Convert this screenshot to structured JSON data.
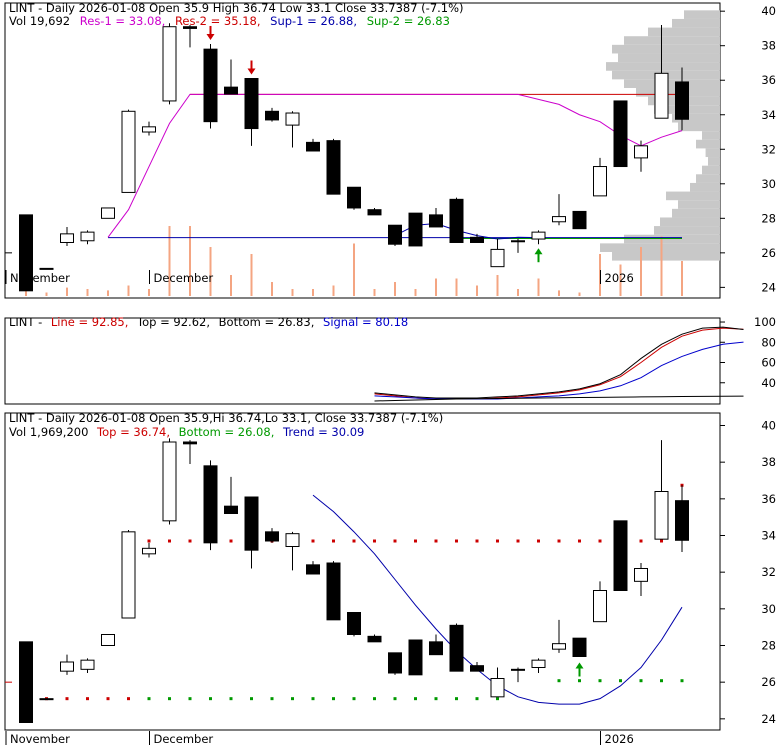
{
  "colors": {
    "res1": "#cc00cc",
    "res2": "#cc0000",
    "sup1": "#0000aa",
    "sup2": "#009900",
    "line": "#000000",
    "signal": "#0000cc",
    "top": "#cc0000",
    "bottom": "#009900",
    "trend": "#0000aa",
    "volume": "#f4a582",
    "volume_profile": "#c8c8c8",
    "grid": "#dddddd",
    "candle_down": "#000000",
    "candle_up": "#ffffff"
  },
  "panel1": {
    "title": "LINT - Daily 2026-01-08 Open 35.9   High 36.74   Low 33.1   Close 33.7387 (-7.1%)",
    "vol_label": "Vol 19,692",
    "res1": "Res-1 = 33.08,",
    "res2": "Res-2 = 35.18,",
    "sup1": "Sup-1 = 26.88,",
    "sup2": "Sup-2 = 26.83"
  },
  "panel2": {
    "prefix": "LINT -",
    "line": "Line = 92.85,",
    "top": "Top = 92.62,",
    "bottom": "Bottom = 26.83,",
    "signal": "Signal = 80.18"
  },
  "panel3": {
    "title": "LINT - Daily 2026-01-08 Open 35.9,Hi 36.74,Lo 33.1, Close 33.7387 (-7.1%)",
    "vol": "Vol 1,969,200",
    "top": "Top = 36.74,",
    "bottom": "Bottom = 26.08,",
    "trend": "Trend = 30.09"
  },
  "x_labels": [
    {
      "label": "November",
      "index": 0
    },
    {
      "label": "December",
      "index": 7
    },
    {
      "label": "2026",
      "index": 29
    }
  ],
  "chart_data": [
    {
      "type": "candlestick",
      "title": "LINT - Daily 2026-01-08 Open 35.9 High 36.74 Low 33.1 Close 33.7387 (-7.1%)",
      "ylim": [
        23.5,
        40.3
      ],
      "yticks": [
        24,
        26,
        28,
        30,
        32,
        34,
        36,
        38,
        40
      ],
      "candles": [
        {
          "o": 28.2,
          "h": 28.2,
          "l": 23.8,
          "c": 23.8
        },
        {
          "o": 25.1,
          "h": 25.1,
          "l": 25.1,
          "c": 25.1
        },
        {
          "o": 26.6,
          "h": 27.5,
          "l": 26.4,
          "c": 27.1
        },
        {
          "o": 26.7,
          "h": 27.3,
          "l": 26.5,
          "c": 27.2
        },
        {
          "o": 28.0,
          "h": 28.6,
          "l": 28.0,
          "c": 28.6
        },
        {
          "o": 29.5,
          "h": 34.3,
          "l": 29.5,
          "c": 34.2
        },
        {
          "o": 33.0,
          "h": 33.6,
          "l": 32.8,
          "c": 33.3
        },
        {
          "o": 34.8,
          "h": 39.3,
          "l": 34.6,
          "c": 39.1
        },
        {
          "o": 39.1,
          "h": 39.2,
          "l": 37.9,
          "c": 39.0
        },
        {
          "o": 37.8,
          "h": 38.1,
          "l": 33.2,
          "c": 33.6
        },
        {
          "o": 35.6,
          "h": 37.2,
          "l": 35.3,
          "c": 35.2
        },
        {
          "o": 36.1,
          "h": 36.1,
          "l": 32.2,
          "c": 33.2
        },
        {
          "o": 34.2,
          "h": 34.4,
          "l": 33.6,
          "c": 33.7
        },
        {
          "o": 33.4,
          "h": 34.2,
          "l": 32.1,
          "c": 34.1
        },
        {
          "o": 32.4,
          "h": 32.6,
          "l": 31.9,
          "c": 31.9
        },
        {
          "o": 32.5,
          "h": 32.6,
          "l": 29.4,
          "c": 29.4
        },
        {
          "o": 29.8,
          "h": 29.8,
          "l": 28.5,
          "c": 28.6
        },
        {
          "o": 28.5,
          "h": 28.6,
          "l": 28.2,
          "c": 28.2
        },
        {
          "o": 27.6,
          "h": 27.6,
          "l": 26.4,
          "c": 26.5
        },
        {
          "o": 28.3,
          "h": 28.3,
          "l": 26.4,
          "c": 26.4
        },
        {
          "o": 28.2,
          "h": 28.6,
          "l": 27.5,
          "c": 27.5
        },
        {
          "o": 29.1,
          "h": 29.2,
          "l": 26.6,
          "c": 26.6
        },
        {
          "o": 26.9,
          "h": 27.1,
          "l": 26.6,
          "c": 26.6
        },
        {
          "o": 25.2,
          "h": 26.8,
          "l": 25.2,
          "c": 26.2
        },
        {
          "o": 26.7,
          "h": 26.8,
          "l": 26.0,
          "c": 26.7
        },
        {
          "o": 26.8,
          "h": 27.3,
          "l": 26.5,
          "c": 27.2
        },
        {
          "o": 27.8,
          "h": 29.4,
          "l": 27.6,
          "c": 28.1
        },
        {
          "o": 28.4,
          "h": 28.4,
          "l": 27.4,
          "c": 27.4
        },
        {
          "o": 29.3,
          "h": 31.5,
          "l": 29.3,
          "c": 31.0
        },
        {
          "o": 34.8,
          "h": 34.8,
          "l": 31.0,
          "c": 31.0
        },
        {
          "o": 31.5,
          "h": 32.5,
          "l": 30.7,
          "c": 32.2
        },
        {
          "o": 33.8,
          "h": 39.2,
          "l": 33.8,
          "c": 36.4
        },
        {
          "o": 35.9,
          "h": 36.74,
          "l": 33.1,
          "c": 33.7387
        }
      ],
      "volume_relative": [
        0.1,
        0.05,
        0.12,
        0.1,
        0.08,
        0.15,
        0.1,
        1.0,
        1.0,
        0.7,
        0.3,
        0.6,
        0.2,
        0.1,
        0.1,
        0.15,
        0.75,
        0.1,
        0.2,
        0.1,
        0.25,
        0.25,
        0.15,
        0.3,
        0.1,
        0.25,
        0.08,
        0.05,
        0.6,
        0.45,
        0.7,
        0.85,
        0.5
      ],
      "res1": 33.08,
      "res2": 35.18,
      "sup1": 26.88,
      "sup2": 26.83,
      "markers": [
        {
          "index": 9,
          "kind": "down",
          "color": "#cc0000"
        },
        {
          "index": 11,
          "kind": "down",
          "color": "#cc0000"
        },
        {
          "index": 25,
          "kind": "up",
          "color": "#009900"
        }
      ]
    },
    {
      "type": "line",
      "title": "LINT - Line = 92.85, Top = 92.62, Bottom = 26.83, Signal = 80.18",
      "ylim": [
        20,
        102
      ],
      "yticks": [
        40,
        60,
        80,
        100
      ],
      "series": [
        {
          "name": "Line",
          "start_index": 17,
          "values": [
            29,
            27,
            25,
            24,
            24,
            24,
            25,
            26,
            28,
            30,
            33,
            38,
            46,
            60,
            75,
            86,
            92,
            94,
            92.85
          ]
        },
        {
          "name": "Top",
          "start_index": 17,
          "values": [
            30,
            28,
            26,
            25,
            25,
            25,
            26,
            27,
            29,
            31,
            34,
            39,
            48,
            64,
            78,
            88,
            94,
            95,
            92.62
          ]
        },
        {
          "name": "Signal",
          "start_index": 17,
          "values": [
            27,
            26,
            25,
            24,
            24,
            24,
            24,
            25,
            26,
            27,
            29,
            32,
            37,
            45,
            57,
            66,
            73,
            78,
            80.18
          ]
        },
        {
          "name": "Bottom",
          "start_index": 17,
          "values": [
            22,
            22.5,
            23,
            23.5,
            24,
            24.2,
            24.5,
            24.7,
            25,
            25.2,
            25.4,
            25.6,
            25.8,
            26,
            26.2,
            26.4,
            26.6,
            26.7,
            26.83
          ]
        }
      ]
    },
    {
      "type": "candlestick",
      "title": "LINT - Daily 2026-01-08 Open 35.9,Hi 36.74,Lo 33.1, Close 33.7387 (-7.1%)",
      "ylim": [
        23.5,
        40.3
      ],
      "yticks": [
        24,
        26,
        28,
        30,
        32,
        34,
        36,
        38,
        40
      ],
      "top": 36.74,
      "bottom": 26.08,
      "trend": 30.09,
      "trend_line": {
        "start_index": 14,
        "values": [
          36.2,
          35.3,
          34.2,
          33.0,
          31.6,
          30.2,
          28.9,
          27.7,
          26.7,
          25.8,
          25.2,
          24.9,
          24.8,
          24.8,
          25.1,
          25.8,
          26.8,
          28.3,
          30.09
        ]
      },
      "top_dots": [
        {
          "index": 6,
          "value": 33.7
        },
        {
          "index": 7,
          "value": 33.7
        },
        {
          "index": 8,
          "value": 33.7
        },
        {
          "index": 9,
          "value": 33.7
        },
        {
          "index": 10,
          "value": 33.7
        },
        {
          "index": 11,
          "value": 33.7
        },
        {
          "index": 12,
          "value": 33.7
        },
        {
          "index": 13,
          "value": 33.7
        },
        {
          "index": 14,
          "value": 33.7
        },
        {
          "index": 15,
          "value": 33.7
        },
        {
          "index": 16,
          "value": 33.7
        },
        {
          "index": 17,
          "value": 33.7
        },
        {
          "index": 18,
          "value": 33.7
        },
        {
          "index": 19,
          "value": 33.7
        },
        {
          "index": 20,
          "value": 33.7
        },
        {
          "index": 21,
          "value": 33.7
        },
        {
          "index": 22,
          "value": 33.7
        },
        {
          "index": 23,
          "value": 33.7
        },
        {
          "index": 24,
          "value": 33.7
        },
        {
          "index": 25,
          "value": 33.7
        },
        {
          "index": 26,
          "value": 33.7
        },
        {
          "index": 27,
          "value": 33.7
        },
        {
          "index": 28,
          "value": 33.7
        },
        {
          "index": 29,
          "value": 33.7
        },
        {
          "index": 30,
          "value": 33.7
        },
        {
          "index": 31,
          "value": 33.7
        },
        {
          "index": 32,
          "value": 36.74
        },
        {
          "index": 1,
          "value": 25.1
        },
        {
          "index": 2,
          "value": 25.1
        },
        {
          "index": 3,
          "value": 25.1
        },
        {
          "index": 4,
          "value": 25.1
        },
        {
          "index": 5,
          "value": 25.1
        }
      ],
      "bottom_dots": [
        6,
        7,
        8,
        9,
        10,
        11,
        12,
        13,
        14,
        15,
        16,
        17,
        18,
        19,
        20,
        21,
        22,
        23
      ],
      "bottom_dots_value": 25.1,
      "bottom_dots2": [
        26,
        27,
        28,
        29,
        30,
        31,
        32
      ],
      "bottom_dots2_value": 26.08,
      "markers": [
        {
          "index": 27,
          "kind": "up",
          "color": "#009900"
        }
      ]
    }
  ]
}
